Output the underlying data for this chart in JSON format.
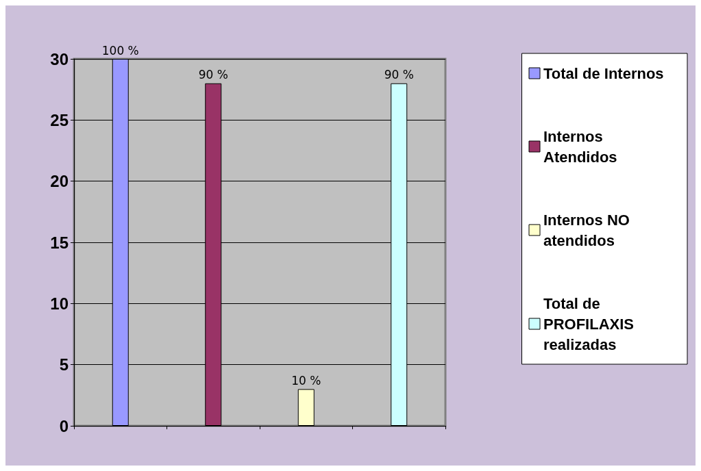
{
  "chart_data": {
    "type": "bar",
    "categories": [
      null,
      null,
      null,
      null
    ],
    "series": [
      {
        "name": "Total de Internos",
        "color": "#9999ff",
        "values": [
          30,
          null,
          null,
          null
        ]
      },
      {
        "name": "Internos Atendidos",
        "color": "#993366",
        "values": [
          null,
          28,
          null,
          null
        ]
      },
      {
        "name": "Internos NO atendidos",
        "color": "#ffffcc",
        "values": [
          null,
          null,
          3,
          null
        ]
      },
      {
        "name": "Total de PROFILAXIS realizadas",
        "color": "#ccffff",
        "values": [
          null,
          null,
          null,
          28
        ]
      }
    ],
    "annotations": [
      {
        "text": "100 %",
        "y": 30
      },
      {
        "text": "90 %",
        "y": 28
      },
      {
        "text": "10 %",
        "y": 3
      },
      {
        "text": "90 %",
        "y": 28
      }
    ],
    "ylim": [
      0,
      30
    ],
    "yticks": [
      0,
      5,
      10,
      15,
      20,
      25,
      30
    ],
    "grid": "y",
    "legend": "right"
  }
}
